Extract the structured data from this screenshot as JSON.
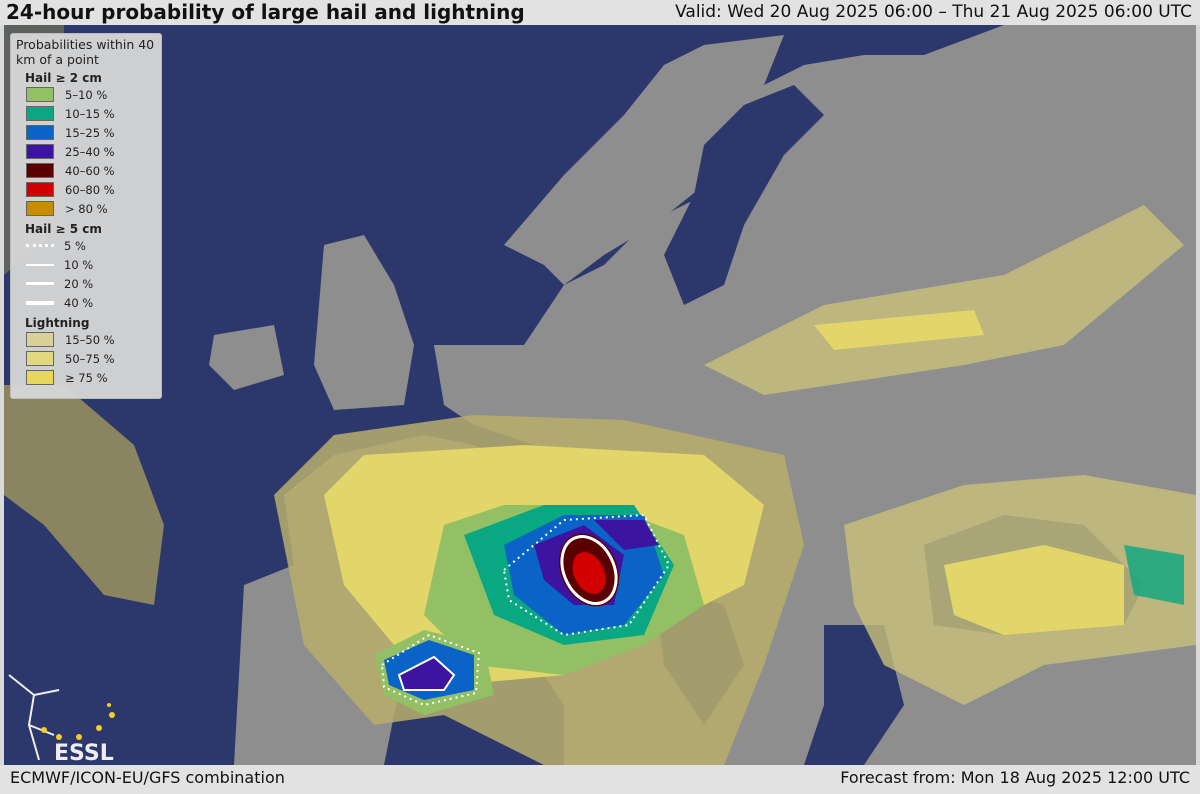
{
  "header": {
    "title": "24-hour probability of large hail and lightning",
    "valid": "Valid: Wed 20 Aug 2025 06:00 – Thu 21 Aug 2025 06:00 UTC"
  },
  "footer": {
    "model": "ECMWF/ICON-EU/GFS combination",
    "forecast": "Forecast from: Mon 18 Aug 2025 12:00 UTC"
  },
  "legend": {
    "heading": "Probabilities within 40 km of a point",
    "hail2": {
      "title": "Hail ≥ 2 cm",
      "items": [
        {
          "label": "5–10 %",
          "color": "#93c064"
        },
        {
          "label": "10–15 %",
          "color": "#0aa882"
        },
        {
          "label": "15–25 %",
          "color": "#0a64c8"
        },
        {
          "label": "25–40 %",
          "color": "#3c14a0"
        },
        {
          "label": "40–60 %",
          "color": "#5a0000"
        },
        {
          "label": "60–80 %",
          "color": "#d20000"
        },
        {
          "label": "> 80 %",
          "color": "#c88c00"
        }
      ]
    },
    "hail5": {
      "title": "Hail ≥ 5 cm",
      "items": [
        {
          "label": "5 %",
          "style": "dotted"
        },
        {
          "label": "10 %",
          "style": "thin"
        },
        {
          "label": "20 %",
          "style": "medium"
        },
        {
          "label": "40 %",
          "style": "thick"
        }
      ]
    },
    "lightning": {
      "title": "Lightning",
      "items": [
        {
          "label": "15–50 %",
          "color": "#d8d29a"
        },
        {
          "label": "50–75 %",
          "color": "#e2d880"
        },
        {
          "label": "≥ 75 %",
          "color": "#e8d858"
        }
      ]
    }
  },
  "logo": {
    "text": "ESSL"
  },
  "colors": {
    "sea": "#2c386b",
    "land": "#8e8e8e",
    "lightning_low": "#5e625e"
  }
}
